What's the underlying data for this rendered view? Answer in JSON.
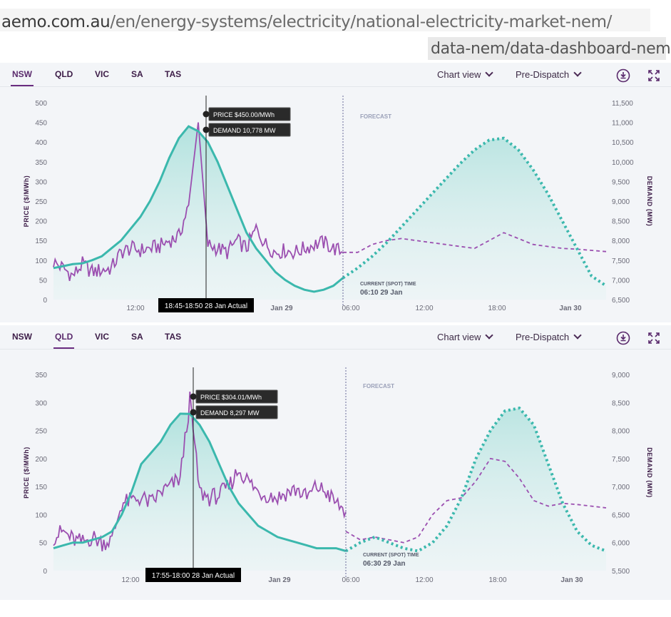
{
  "address_bar": {
    "domain": "aemo.com.au",
    "path": "/en/energy-systems/electricity/national-electricity-market-nem/",
    "path_continued": "data-nem/data-dashboard-nem"
  },
  "panels": [
    {
      "tabs": [
        {
          "label": "NSW",
          "active": true
        },
        {
          "label": "QLD",
          "active": false
        },
        {
          "label": "VIC",
          "active": false
        },
        {
          "label": "SA",
          "active": false
        },
        {
          "label": "TAS",
          "active": false
        }
      ],
      "chart_view_label": "Chart view",
      "dispatch_label": "Pre-Dispatch",
      "icons": [
        "download-icon",
        "expand-icon"
      ]
    },
    {
      "tabs": [
        {
          "label": "NSW",
          "active": false
        },
        {
          "label": "QLD",
          "active": true
        },
        {
          "label": "VIC",
          "active": false
        },
        {
          "label": "SA",
          "active": false
        },
        {
          "label": "TAS",
          "active": false
        }
      ],
      "chart_view_label": "Chart view",
      "dispatch_label": "Pre-Dispatch",
      "icons": [
        "download-icon",
        "expand-icon"
      ]
    }
  ],
  "chart_data": [
    {
      "type": "line",
      "region": "NSW",
      "ylabel": "PRICE ($/MWh)",
      "y2label": "DEMAND (MW)",
      "ylim": [
        0,
        500
      ],
      "y_ticks": [
        "0",
        "50",
        "100",
        "150",
        "200",
        "250",
        "300",
        "350",
        "400",
        "450",
        "500"
      ],
      "y2lim": [
        6500,
        11500
      ],
      "y2_ticks": [
        "6,500",
        "7,000",
        "7,500",
        "8,000",
        "8,500",
        "9,000",
        "9,500",
        "10,000",
        "10,500",
        "11,000",
        "11,500"
      ],
      "x_ticks": [
        "12:00",
        "Jan 29",
        "06:00",
        "12:00",
        "18:00",
        "Jan 30"
      ],
      "forecast_label": "FORECAST",
      "current_time_label": "CURRENT (SPOT) TIME",
      "current_time_value": "06:10 29 Jan",
      "tooltip_price": "PRICE $450.00/MWh",
      "tooltip_demand": "DEMAND 10,778 MW",
      "cursor_time_label": "18:45-18:50 28 Jan Actual",
      "x_hours": [
        0,
        1,
        2,
        3,
        4,
        5,
        6,
        7,
        8,
        9,
        10,
        11,
        12,
        13,
        14,
        15,
        16,
        17,
        18,
        19,
        20,
        21,
        22,
        23,
        24,
        25,
        26,
        27,
        28,
        29,
        30,
        31,
        32,
        33,
        34,
        35,
        36,
        37,
        38,
        39,
        40,
        41,
        42,
        43,
        44,
        45,
        46,
        47,
        48
      ],
      "series": [
        {
          "name": "Price",
          "color": "#9b4fb0",
          "actual": [
            95,
            80,
            60,
            90,
            70,
            75,
            80,
            120,
            130,
            125,
            130,
            135,
            150,
            160,
            240,
            450,
            140,
            130,
            120,
            150,
            130,
            180,
            140,
            120,
            125,
            120,
            130,
            140,
            145,
            130,
            120
          ],
          "forecast": [
            120,
            120,
            140,
            150,
            155,
            150,
            145,
            140,
            135,
            130,
            150,
            170,
            155,
            140,
            135,
            130,
            128,
            125,
            122
          ]
        },
        {
          "name": "Demand",
          "color": "#3bb8ad",
          "actual": [
            7300,
            7350,
            7400,
            7420,
            7500,
            7600,
            7800,
            8000,
            8300,
            8600,
            9000,
            9500,
            10100,
            10600,
            10900,
            10778,
            10500,
            10000,
            9400,
            8800,
            8200,
            7800,
            7500,
            7200,
            7000,
            6850,
            6750,
            6700,
            6750,
            6850,
            7050
          ],
          "forecast": [
            7050,
            7300,
            7600,
            7950,
            8350,
            8750,
            9150,
            9550,
            9950,
            10300,
            10550,
            10600,
            10300,
            9800,
            9200,
            8500,
            7800,
            7100,
            6850
          ]
        }
      ]
    },
    {
      "type": "line",
      "region": "QLD",
      "ylabel": "PRICE ($/MWh)",
      "y2label": "DEMAND (MW)",
      "ylim": [
        0,
        350
      ],
      "y_ticks": [
        "0",
        "50",
        "100",
        "150",
        "200",
        "250",
        "300",
        "350"
      ],
      "y2lim": [
        5500,
        9000
      ],
      "y2_ticks": [
        "5,500",
        "6,000",
        "6,500",
        "7,000",
        "7,500",
        "8,000",
        "8,500",
        "9,000"
      ],
      "x_ticks": [
        "12:00",
        "Jan 29",
        "06:00",
        "12:00",
        "18:00",
        "Jan 30"
      ],
      "forecast_label": "FORECAST",
      "current_time_label": "CURRENT (SPOT) TIME",
      "current_time_value": "06:30 29 Jan",
      "tooltip_price": "PRICE $304.01/MWh",
      "tooltip_demand": "DEMAND 8,297 MW",
      "cursor_time_label": "17:55-18:00 28 Jan Actual",
      "series": [
        {
          "name": "Price",
          "color": "#9b4fb0",
          "actual": [
            60,
            70,
            55,
            50,
            60,
            50,
            55,
            120,
            125,
            130,
            120,
            140,
            150,
            165,
            304,
            140,
            130,
            135,
            150,
            180,
            160,
            140,
            135,
            130,
            140,
            145,
            130,
            150,
            140,
            120,
            105
          ],
          "forecast": [
            70,
            55,
            60,
            55,
            50,
            60,
            100,
            125,
            130,
            160,
            200,
            195,
            165,
            125,
            115,
            120,
            118,
            115,
            112
          ]
        },
        {
          "name": "Demand",
          "color": "#3bb8ad",
          "actual": [
            5900,
            5950,
            6000,
            6000,
            6050,
            6100,
            6200,
            6500,
            6900,
            7400,
            7600,
            7800,
            8100,
            8300,
            8297,
            8100,
            7800,
            7400,
            7000,
            6700,
            6500,
            6300,
            6200,
            6100,
            6050,
            6000,
            5950,
            5900,
            5900,
            5900,
            5850
          ],
          "forecast": [
            5850,
            6000,
            6100,
            6000,
            5900,
            5850,
            6000,
            6300,
            6800,
            7500,
            8000,
            8350,
            8400,
            8100,
            7400,
            6700,
            6200,
            5950,
            5850
          ]
        }
      ]
    }
  ]
}
